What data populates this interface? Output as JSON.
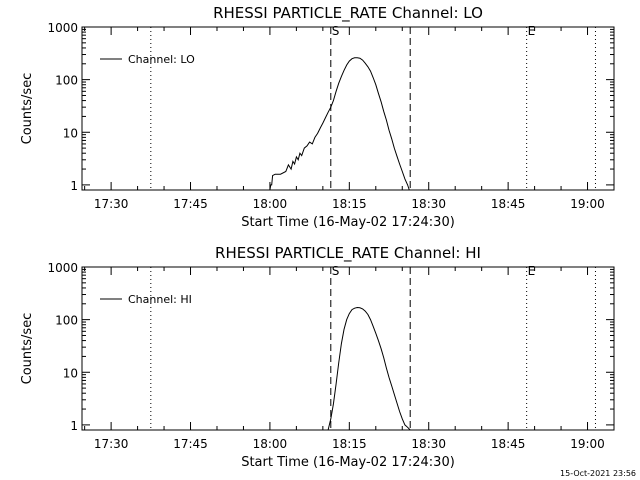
{
  "footer": {
    "timestamp": "15-Oct-2021 23:56"
  },
  "chart_data": [
    {
      "type": "line",
      "title": "RHESSI PARTICLE_RATE Channel: LO",
      "xlabel": "Start Time (16-May-02 17:24:30)",
      "ylabel": "Counts/sec",
      "legend": {
        "label": "Channel: LO",
        "placement": "top-left"
      },
      "yscale": "log",
      "ylim": [
        0.8,
        1000
      ],
      "yticks": [
        1,
        10,
        100,
        1000
      ],
      "ytick_labels": [
        "1",
        "10",
        "100",
        "1000"
      ],
      "xlim": [
        "17:24:30",
        "19:05:00"
      ],
      "xticks": [
        "17:30",
        "17:45",
        "18:00",
        "18:15",
        "18:30",
        "18:45",
        "19:00"
      ],
      "markers": [
        {
          "time": "17:37:30",
          "style": "dotted",
          "label": ""
        },
        {
          "time": "18:11:30",
          "style": "dashed",
          "label": "S"
        },
        {
          "time": "18:26:30",
          "style": "dashed",
          "label": ""
        },
        {
          "time": "18:48:30",
          "style": "dotted",
          "label": "E"
        },
        {
          "time": "19:01:30",
          "style": "dotted",
          "label": ""
        }
      ],
      "series": [
        {
          "name": "Channel: LO",
          "x": [
            "18:00:00",
            "18:00:10",
            "18:00:20",
            "18:00:30",
            "18:01:00",
            "18:02:00",
            "18:03:00",
            "18:03:30",
            "18:04:00",
            "18:04:20",
            "18:04:40",
            "18:05:00",
            "18:05:20",
            "18:05:40",
            "18:06:00",
            "18:06:30",
            "18:07:00",
            "18:07:30",
            "18:08:00",
            "18:08:30",
            "18:09:00",
            "18:09:30",
            "18:10:00",
            "18:10:30",
            "18:11:00",
            "18:11:30",
            "18:12:00",
            "18:12:30",
            "18:13:00",
            "18:13:30",
            "18:14:00",
            "18:14:30",
            "18:15:00",
            "18:15:30",
            "18:16:00",
            "18:16:30",
            "18:17:00",
            "18:17:30",
            "18:18:00",
            "18:18:30",
            "18:19:00",
            "18:19:30",
            "18:20:00",
            "18:20:30",
            "18:21:00",
            "18:21:30",
            "18:22:00",
            "18:22:30",
            "18:23:00",
            "18:23:30",
            "18:24:00",
            "18:24:30",
            "18:25:00",
            "18:25:30",
            "18:26:00",
            "18:26:20"
          ],
          "y": [
            0.8,
            1.0,
            1.0,
            1.5,
            1.6,
            1.6,
            1.8,
            2.4,
            2.0,
            2.8,
            2.5,
            3.4,
            3.0,
            4.0,
            3.6,
            5.0,
            5.5,
            6.5,
            6.0,
            8.0,
            9.5,
            12,
            15,
            19,
            24,
            30,
            40,
            60,
            85,
            115,
            150,
            190,
            225,
            250,
            260,
            260,
            255,
            235,
            205,
            175,
            145,
            110,
            80,
            55,
            38,
            25,
            17,
            11,
            7.5,
            5.0,
            3.5,
            2.5,
            1.8,
            1.3,
            1.0,
            0.8
          ]
        }
      ]
    },
    {
      "type": "line",
      "title": "RHESSI PARTICLE_RATE Channel: HI",
      "xlabel": "Start Time (16-May-02 17:24:30)",
      "ylabel": "Counts/sec",
      "legend": {
        "label": "Channel: HI",
        "placement": "top-left"
      },
      "yscale": "log",
      "ylim": [
        0.8,
        1000
      ],
      "yticks": [
        1,
        10,
        100,
        1000
      ],
      "ytick_labels": [
        "1",
        "10",
        "100",
        "1000"
      ],
      "xlim": [
        "17:24:30",
        "19:05:00"
      ],
      "xticks": [
        "17:30",
        "17:45",
        "18:00",
        "18:15",
        "18:30",
        "18:45",
        "19:00"
      ],
      "markers": [
        {
          "time": "17:37:30",
          "style": "dotted",
          "label": ""
        },
        {
          "time": "18:11:30",
          "style": "dashed",
          "label": "S"
        },
        {
          "time": "18:26:30",
          "style": "dashed",
          "label": ""
        },
        {
          "time": "18:48:30",
          "style": "dotted",
          "label": "E"
        },
        {
          "time": "19:01:30",
          "style": "dotted",
          "label": ""
        }
      ],
      "series": [
        {
          "name": "Channel: HI",
          "x": [
            "18:11:00",
            "18:11:30",
            "18:12:00",
            "18:12:30",
            "18:13:00",
            "18:13:30",
            "18:14:00",
            "18:14:30",
            "18:15:00",
            "18:15:30",
            "18:16:00",
            "18:16:30",
            "18:17:00",
            "18:17:30",
            "18:18:00",
            "18:18:30",
            "18:19:00",
            "18:19:30",
            "18:20:00",
            "18:20:30",
            "18:21:00",
            "18:21:30",
            "18:22:00",
            "18:22:30",
            "18:23:00",
            "18:23:30",
            "18:24:00",
            "18:24:30",
            "18:25:00",
            "18:25:30",
            "18:26:00",
            "18:26:30"
          ],
          "y": [
            0.8,
            1.3,
            2.5,
            6,
            15,
            35,
            65,
            100,
            130,
            155,
            165,
            170,
            168,
            160,
            145,
            125,
            100,
            75,
            55,
            40,
            28,
            19,
            12,
            8,
            5.5,
            3.8,
            2.6,
            1.8,
            1.3,
            1.0,
            0.9,
            0.8
          ]
        }
      ]
    }
  ]
}
